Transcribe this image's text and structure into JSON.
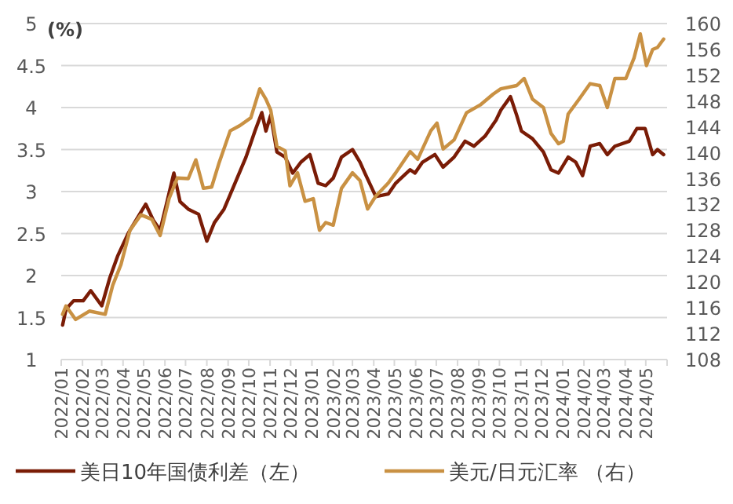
{
  "chart_data": {
    "type": "line",
    "ylabel": "(%)",
    "xlim": [
      "2022-01",
      "2024-06"
    ],
    "xticks": [
      {
        "value": "2022-01",
        "label": "2022/01"
      },
      {
        "value": "2022-02",
        "label": "2022/02"
      },
      {
        "value": "2022-03",
        "label": "2022/03"
      },
      {
        "value": "2022-04",
        "label": "2022/04"
      },
      {
        "value": "2022-05",
        "label": "2022/05"
      },
      {
        "value": "2022-06",
        "label": "2022/06"
      },
      {
        "value": "2022-07",
        "label": "2022/07"
      },
      {
        "value": "2022-08",
        "label": "2022/08"
      },
      {
        "value": "2022-09",
        "label": "2022/09"
      },
      {
        "value": "2022-10",
        "label": "2022/10"
      },
      {
        "value": "2022-11",
        "label": "2022/11"
      },
      {
        "value": "2022-12",
        "label": "2022/12"
      },
      {
        "value": "2023-01",
        "label": "2023/01"
      },
      {
        "value": "2023-02",
        "label": "2023/02"
      },
      {
        "value": "2023-03",
        "label": "2023/03"
      },
      {
        "value": "2023-04",
        "label": "2023/04"
      },
      {
        "value": "2023-05",
        "label": "2023/05"
      },
      {
        "value": "2023-06",
        "label": "2023/06"
      },
      {
        "value": "2023-07",
        "label": "2023/07"
      },
      {
        "value": "2023-08",
        "label": "2023/08"
      },
      {
        "value": "2023-09",
        "label": "2023/09"
      },
      {
        "value": "2023-10",
        "label": "2023/10"
      },
      {
        "value": "2023-11",
        "label": "2023/11"
      },
      {
        "value": "2023-12",
        "label": "2023/12"
      },
      {
        "value": "2024-01",
        "label": "2024/01"
      },
      {
        "value": "2024-02",
        "label": "2024/02"
      },
      {
        "value": "2024-03",
        "label": "2024/03"
      },
      {
        "value": "2024-04",
        "label": "2024/04"
      },
      {
        "value": "2024-05",
        "label": "2024/05"
      }
    ],
    "ylim": [
      1,
      5
    ],
    "yticks": [
      1,
      1.5,
      2,
      2.5,
      3,
      3.5,
      4,
      4.5,
      5
    ],
    "y2lim": [
      108,
      160
    ],
    "y2ticks": [
      108,
      112,
      116,
      120,
      124,
      128,
      132,
      136,
      140,
      144,
      148,
      152,
      156,
      160
    ],
    "grid": "y",
    "legend": "bottom",
    "series": [
      {
        "name": "美日10年国债利差（左）",
        "color": "#7a1c06",
        "x": [
          "2022-01-03",
          "2022-01-08",
          "2022-01-19",
          "2022-02-02",
          "2022-02-13",
          "2022-03-01",
          "2022-03-13",
          "2022-03-24",
          "2022-04-09",
          "2022-04-20",
          "2022-05-04",
          "2022-05-15",
          "2022-05-25",
          "2022-06-05",
          "2022-06-14",
          "2022-06-23",
          "2022-07-05",
          "2022-07-20",
          "2022-08-01",
          "2022-08-12",
          "2022-08-26",
          "2022-09-11",
          "2022-09-27",
          "2022-10-10",
          "2022-10-20",
          "2022-10-26",
          "2022-11-02",
          "2022-11-11",
          "2022-11-23",
          "2022-12-04",
          "2022-12-16",
          "2022-12-29",
          "2023-01-10",
          "2023-01-21",
          "2023-02-01",
          "2023-02-13",
          "2023-03-01",
          "2023-03-12",
          "2023-03-19",
          "2023-04-04",
          "2023-04-22",
          "2023-05-03",
          "2023-05-24",
          "2023-05-31",
          "2023-06-11",
          "2023-06-29",
          "2023-07-11",
          "2023-07-27",
          "2023-08-12",
          "2023-08-25",
          "2023-09-10",
          "2023-09-26",
          "2023-10-03",
          "2023-10-17",
          "2023-10-26",
          "2023-11-02",
          "2023-11-18",
          "2023-12-04",
          "2023-12-15",
          "2023-12-26",
          "2024-01-09",
          "2024-01-20",
          "2024-01-30",
          "2024-02-10",
          "2024-02-24",
          "2024-03-06",
          "2024-03-17",
          "2024-04-07",
          "2024-04-18",
          "2024-04-30",
          "2024-05-11",
          "2024-05-18",
          "2024-05-27"
        ],
        "values": [
          1.41,
          1.6,
          1.7,
          1.7,
          1.82,
          1.64,
          1.98,
          2.23,
          2.51,
          2.66,
          2.85,
          2.66,
          2.54,
          2.91,
          3.22,
          2.88,
          2.79,
          2.73,
          2.41,
          2.63,
          2.79,
          3.1,
          3.41,
          3.72,
          3.94,
          3.72,
          3.91,
          3.47,
          3.41,
          3.22,
          3.35,
          3.44,
          3.1,
          3.07,
          3.16,
          3.41,
          3.5,
          3.35,
          3.22,
          2.94,
          2.97,
          3.1,
          3.26,
          3.22,
          3.35,
          3.44,
          3.29,
          3.41,
          3.6,
          3.54,
          3.66,
          3.85,
          3.97,
          4.13,
          3.91,
          3.72,
          3.63,
          3.47,
          3.26,
          3.22,
          3.41,
          3.35,
          3.19,
          3.54,
          3.57,
          3.44,
          3.54,
          3.6,
          3.75,
          3.75,
          3.44,
          3.5,
          3.44
        ]
      },
      {
        "name": "美元/日元汇率 （右）",
        "color": "#c99143",
        "axis": "y2",
        "x": [
          "2022-01-03",
          "2022-01-08",
          "2022-01-22",
          "2022-02-11",
          "2022-03-06",
          "2022-03-17",
          "2022-03-29",
          "2022-04-11",
          "2022-04-27",
          "2022-05-13",
          "2022-05-25",
          "2022-06-07",
          "2022-06-19",
          "2022-07-05",
          "2022-07-16",
          "2022-07-27",
          "2022-08-08",
          "2022-08-19",
          "2022-09-04",
          "2022-09-18",
          "2022-10-04",
          "2022-10-17",
          "2022-10-26",
          "2022-11-02",
          "2022-11-11",
          "2022-11-23",
          "2022-11-30",
          "2022-12-11",
          "2022-12-22",
          "2023-01-03",
          "2023-01-12",
          "2023-01-21",
          "2023-02-01",
          "2023-02-13",
          "2023-03-01",
          "2023-03-12",
          "2023-03-23",
          "2023-04-04",
          "2023-04-22",
          "2023-05-03",
          "2023-05-24",
          "2023-06-04",
          "2023-06-23",
          "2023-07-02",
          "2023-07-11",
          "2023-07-27",
          "2023-08-14",
          "2023-09-03",
          "2023-09-22",
          "2023-10-03",
          "2023-10-26",
          "2023-11-06",
          "2023-11-18",
          "2023-12-04",
          "2023-12-15",
          "2023-12-26",
          "2024-01-02",
          "2024-01-09",
          "2024-01-25",
          "2024-02-10",
          "2024-02-24",
          "2024-03-06",
          "2024-03-17",
          "2024-04-02",
          "2024-04-14",
          "2024-04-23",
          "2024-05-02",
          "2024-05-11",
          "2024-05-18",
          "2024-05-27"
        ],
        "values": [
          115.0,
          116.3,
          114.2,
          115.5,
          115.0,
          119.5,
          122.7,
          128.0,
          130.4,
          129.7,
          127.2,
          132.9,
          136.1,
          136.0,
          138.9,
          134.5,
          134.7,
          138.5,
          143.4,
          144.2,
          145.4,
          149.9,
          148.3,
          146.6,
          141.0,
          140.3,
          134.9,
          136.9,
          132.5,
          132.9,
          128.0,
          129.2,
          128.8,
          134.5,
          136.9,
          135.7,
          131.3,
          133.3,
          135.3,
          136.9,
          140.2,
          139.0,
          143.4,
          144.6,
          140.6,
          142.0,
          146.2,
          147.4,
          149.1,
          149.9,
          150.4,
          151.5,
          148.3,
          147.0,
          143.0,
          141.4,
          141.8,
          146.0,
          148.3,
          150.7,
          150.4,
          147.0,
          151.5,
          151.5,
          154.7,
          158.4,
          153.5,
          156.0,
          156.3,
          157.6
        ]
      }
    ]
  }
}
